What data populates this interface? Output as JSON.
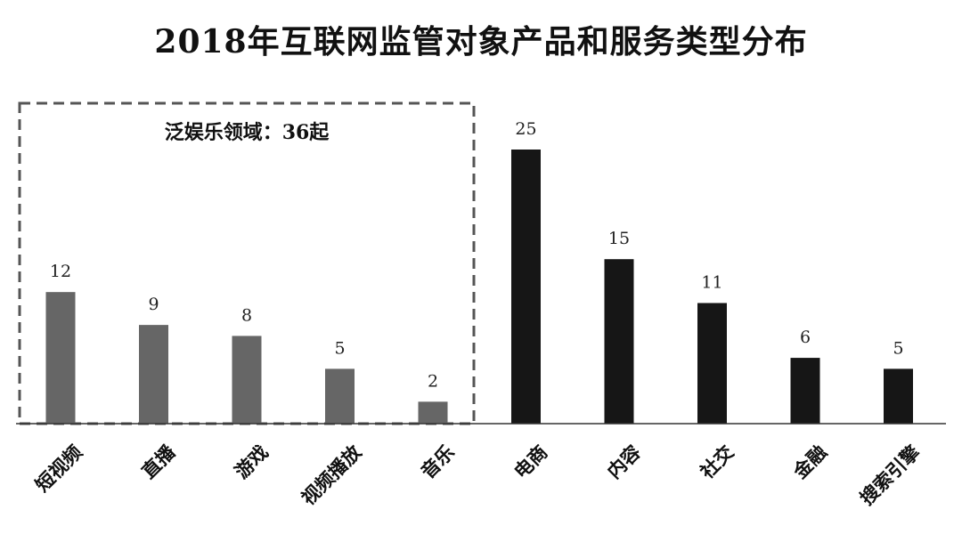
{
  "chart_data": {
    "type": "bar",
    "title": "2018年互联网监管对象产品和服务类型分布",
    "categories": [
      "短视频",
      "直播",
      "游戏",
      "视频播放",
      "音乐",
      "电商",
      "内容",
      "社交",
      "金融",
      "搜索引擎"
    ],
    "values": [
      12,
      9,
      8,
      5,
      2,
      25,
      15,
      11,
      6,
      5
    ],
    "ylim": [
      0,
      25
    ],
    "grid": false,
    "legend": "none",
    "annotation": {
      "text": "泛娱乐领域：36起",
      "categories": [
        "短视频",
        "直播",
        "游戏",
        "视频播放",
        "音乐"
      ]
    },
    "colors": {
      "group_entertainment": "#666666",
      "group_other": "#161616",
      "dashed_box": "#555555",
      "axis": "#333333"
    }
  }
}
